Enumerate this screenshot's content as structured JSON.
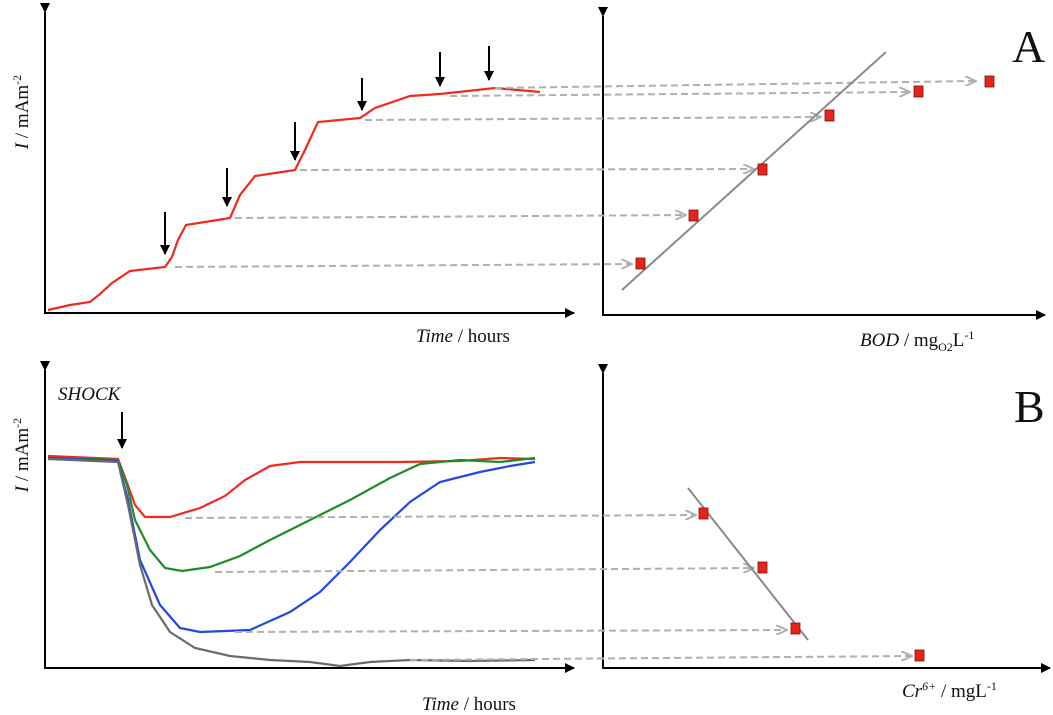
{
  "panels": [
    {
      "label": "A",
      "left_y_label": {
        "symbol": "I",
        "rest": " / mAm",
        "sup": "-2"
      },
      "left_x_label": {
        "symbol": "Time",
        "rest": " / hours"
      },
      "right_x_label": {
        "symbol": "BOD",
        "rest": " / mg",
        "sub": "O2",
        "rest2": "L",
        "sup": "-1"
      }
    },
    {
      "label": "B",
      "annotation": "SHOCK",
      "left_y_label": {
        "symbol": "I",
        "rest": " / mAm",
        "sup": "-2"
      },
      "left_x_label": {
        "symbol": "Time",
        "rest": " / hours"
      },
      "right_x_label": {
        "symbol": "Cr",
        "sup1": "6+",
        "rest": " / mgL",
        "sup": "-1"
      }
    }
  ]
}
